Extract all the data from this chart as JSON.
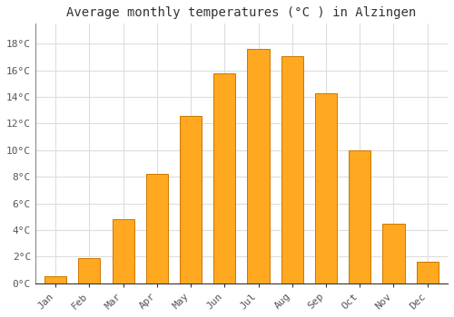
{
  "title": "Average monthly temperatures (°C ) in Alzingen",
  "months": [
    "Jan",
    "Feb",
    "Mar",
    "Apr",
    "May",
    "Jun",
    "Jul",
    "Aug",
    "Sep",
    "Oct",
    "Nov",
    "Dec"
  ],
  "values": [
    0.5,
    1.9,
    4.8,
    8.2,
    12.6,
    15.8,
    17.6,
    17.1,
    14.3,
    10.0,
    4.5,
    1.6
  ],
  "bar_color": "#FFA820",
  "bar_edge_color": "#CC7700",
  "background_color": "#FFFFFF",
  "grid_color": "#DDDDDD",
  "ytick_labels": [
    "0°C",
    "2°C",
    "4°C",
    "6°C",
    "8°C",
    "10°C",
    "12°C",
    "14°C",
    "16°C",
    "18°C"
  ],
  "ytick_values": [
    0,
    2,
    4,
    6,
    8,
    10,
    12,
    14,
    16,
    18
  ],
  "ylim": [
    0,
    19.5
  ],
  "title_fontsize": 10,
  "tick_fontsize": 8,
  "font_family": "monospace",
  "bar_width": 0.65
}
